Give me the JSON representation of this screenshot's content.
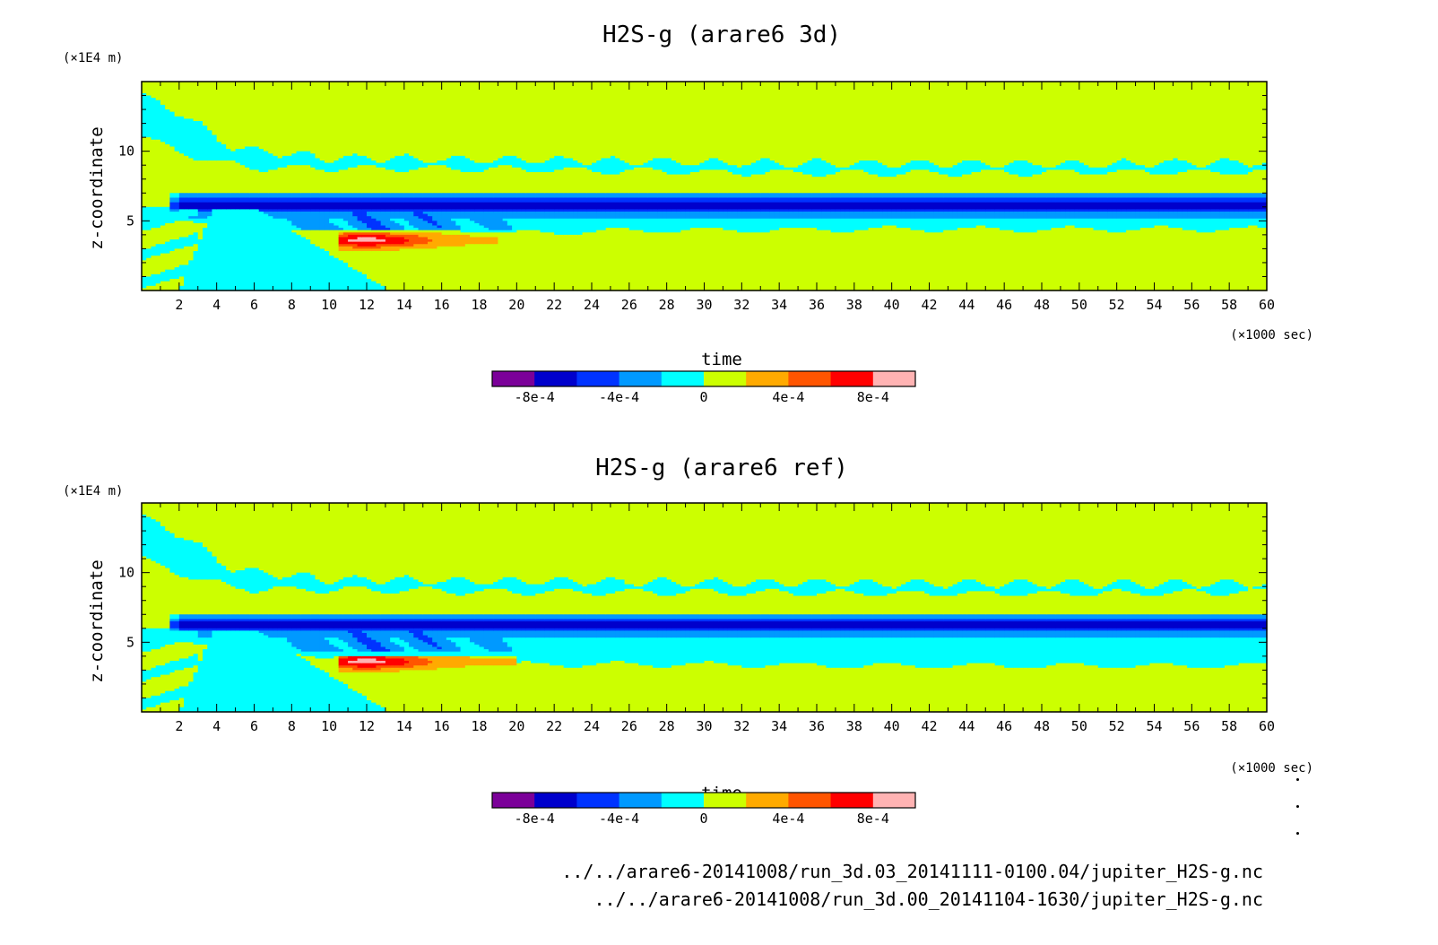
{
  "colors": {
    "levels": [
      "#7b0099",
      "#0000cc",
      "#0033ff",
      "#0099ff",
      "#00ffff",
      "#ccff00",
      "#ffaa00",
      "#ff5500",
      "#ff0000",
      "#ffb3b3"
    ],
    "frame": "#000000",
    "background": "#ffffff"
  },
  "colorbar": {
    "labels": [
      "-8e-4",
      "-4e-4",
      "0",
      "4e-4",
      "8e-4"
    ],
    "label_values": [
      -0.0008,
      -0.0004,
      0,
      0.0004,
      0.0008
    ],
    "levels": [
      -0.001,
      -0.0008,
      -0.0006,
      -0.0004,
      -0.0002,
      0,
      0.0002,
      0.0004,
      0.0006,
      0.0008,
      0.001
    ]
  },
  "chart_data": [
    {
      "type": "heatmap",
      "title": "H2S-g (arare6 3d)",
      "xlabel": "time",
      "xunit": "(×1000 sec)",
      "ylabel": "z-coordinate",
      "yunit": "(×1E4 m)",
      "xlim": [
        0,
        60
      ],
      "ylim": [
        0,
        15
      ],
      "xticks": [
        2,
        4,
        6,
        8,
        10,
        12,
        14,
        16,
        18,
        20,
        22,
        24,
        26,
        28,
        30,
        32,
        34,
        36,
        38,
        40,
        42,
        44,
        46,
        48,
        50,
        52,
        54,
        56,
        58,
        60
      ],
      "yticks": [
        5,
        10
      ],
      "features": {
        "upper_anomaly_bottom": [
          [
            0,
            11
          ],
          [
            2,
            10
          ],
          [
            4,
            9.2
          ],
          [
            6,
            8.8
          ],
          [
            10,
            8.8
          ],
          [
            20,
            8.7
          ],
          [
            30,
            8.5
          ],
          [
            40,
            8.4
          ],
          [
            50,
            8.5
          ],
          [
            60,
            8.5
          ]
        ],
        "upper_anomaly_top": [
          [
            0,
            14
          ],
          [
            2,
            12.8
          ],
          [
            4,
            11
          ],
          [
            5,
            10.2
          ],
          [
            10,
            9.5
          ],
          [
            20,
            9.4
          ],
          [
            30,
            9.2
          ],
          [
            40,
            9.1
          ],
          [
            50,
            9.1
          ],
          [
            60,
            9.2
          ]
        ],
        "deep_band_center": 6.1,
        "deep_band_halfwidth": 0.5,
        "lower_anomaly_bottom": [
          [
            6,
            5
          ],
          [
            10,
            4.5
          ],
          [
            14,
            4.5
          ],
          [
            20,
            4.1
          ],
          [
            26,
            4.3
          ],
          [
            40,
            4.4
          ],
          [
            60,
            4.4
          ]
        ],
        "lower_anomaly_top": [
          [
            6,
            6
          ],
          [
            20,
            5.8
          ],
          [
            60,
            5.7
          ]
        ],
        "positive_patch": {
          "x": [
            10.5,
            19
          ],
          "y": [
            2.6,
            4.2
          ],
          "peak_x": 12,
          "peak_y": 3.6
        }
      }
    },
    {
      "type": "heatmap",
      "title": "H2S-g (arare6 ref)",
      "xlabel": "time",
      "xunit": "(×1000 sec)",
      "ylabel": "z-coordinate",
      "yunit": "(×1E4 m)",
      "xlim": [
        0,
        60
      ],
      "ylim": [
        0,
        15
      ],
      "xticks": [
        2,
        4,
        6,
        8,
        10,
        12,
        14,
        16,
        18,
        20,
        22,
        24,
        26,
        28,
        30,
        32,
        34,
        36,
        38,
        40,
        42,
        44,
        46,
        48,
        50,
        52,
        54,
        56,
        58,
        60
      ],
      "yticks": [
        5,
        10
      ],
      "features": {
        "upper_anomaly_bottom": [
          [
            0,
            11
          ],
          [
            2,
            10
          ],
          [
            4,
            9.2
          ],
          [
            6,
            8.8
          ],
          [
            10,
            8.8
          ],
          [
            20,
            8.6
          ],
          [
            30,
            8.6
          ],
          [
            40,
            8.5
          ],
          [
            50,
            8.5
          ],
          [
            60,
            8.6
          ]
        ],
        "upper_anomaly_top": [
          [
            0,
            14
          ],
          [
            2,
            12.8
          ],
          [
            4,
            11
          ],
          [
            5,
            10.2
          ],
          [
            10,
            9.5
          ],
          [
            20,
            9.4
          ],
          [
            30,
            9.3
          ],
          [
            40,
            9.2
          ],
          [
            50,
            9.2
          ],
          [
            60,
            9.2
          ]
        ],
        "deep_band_center": 6.2,
        "deep_band_halfwidth": 0.45,
        "lower_anomaly_bottom": [
          [
            6,
            5
          ],
          [
            10,
            3.8
          ],
          [
            20,
            3.4
          ],
          [
            30,
            3.4
          ],
          [
            40,
            3.3
          ],
          [
            60,
            3.3
          ]
        ],
        "lower_anomaly_top": [
          [
            6,
            6
          ],
          [
            20,
            5.9
          ],
          [
            60,
            5.8
          ]
        ],
        "positive_patch": {
          "x": [
            10.5,
            20
          ],
          "y": [
            2.8,
            4.0
          ],
          "peak_x": 12,
          "peak_y": 3.6
        }
      }
    }
  ],
  "files": [
    "../../arare6-20141008/run_3d.03_20141111-0100.04/jupiter_H2S-g.nc",
    "../../arare6-20141008/run_3d.00_20141104-1630/jupiter_H2S-g.nc"
  ]
}
